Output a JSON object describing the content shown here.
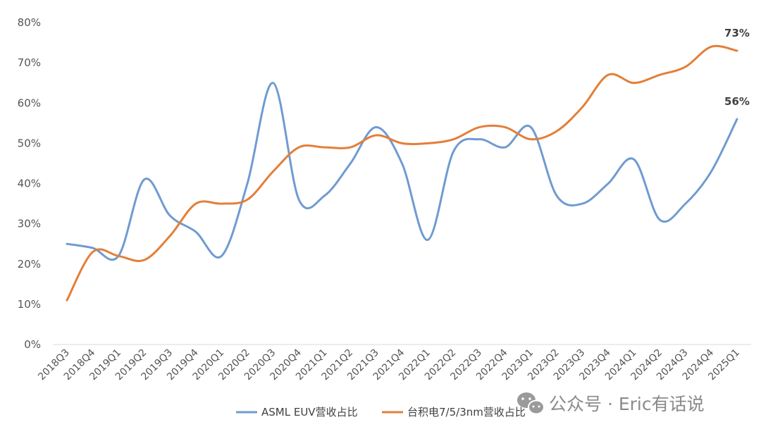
{
  "chart_data": {
    "type": "line",
    "categories": [
      "2018Q3",
      "2018Q4",
      "2019Q1",
      "2019Q2",
      "2019Q3",
      "2019Q4",
      "2020Q1",
      "2020Q2",
      "2020Q3",
      "2020Q4",
      "2021Q1",
      "2021Q2",
      "2021Q3",
      "2021Q4",
      "2022Q1",
      "2022Q2",
      "2022Q3",
      "2022Q4",
      "2023Q1",
      "2023Q2",
      "2023Q3",
      "2023Q4",
      "2024Q1",
      "2024Q2",
      "2024Q3",
      "2024Q4",
      "2025Q1"
    ],
    "series": [
      {
        "name": "ASML EUV营收占比",
        "color": "#6f9bd1",
        "values": [
          25,
          24,
          22,
          41,
          32,
          28,
          22,
          40,
          65,
          36,
          37,
          45,
          54,
          45,
          26,
          48,
          51,
          49,
          54,
          37,
          35,
          40,
          46,
          31,
          35,
          43,
          56
        ]
      },
      {
        "name": "台积电7/5/3nm营收占比",
        "color": "#e37f38",
        "values": [
          11,
          23,
          22,
          21,
          27,
          35,
          35,
          36,
          43,
          49,
          49,
          49,
          52,
          50,
          50,
          51,
          54,
          54,
          51,
          53,
          59,
          67,
          65,
          67,
          69,
          74,
          73
        ]
      }
    ],
    "data_labels": [
      {
        "series": 0,
        "index": 26,
        "text": "56%"
      },
      {
        "series": 1,
        "index": 26,
        "text": "73%"
      }
    ],
    "yticks": [
      "0%",
      "10%",
      "20%",
      "30%",
      "40%",
      "50%",
      "60%",
      "70%",
      "80%"
    ],
    "ylim": [
      0,
      80
    ],
    "grid": false,
    "legend": "bottom-center",
    "title": "",
    "xlabel": "",
    "ylabel": ""
  },
  "watermark": {
    "icon": "wechat-icon",
    "text": "公众号 · Eric有话说"
  }
}
